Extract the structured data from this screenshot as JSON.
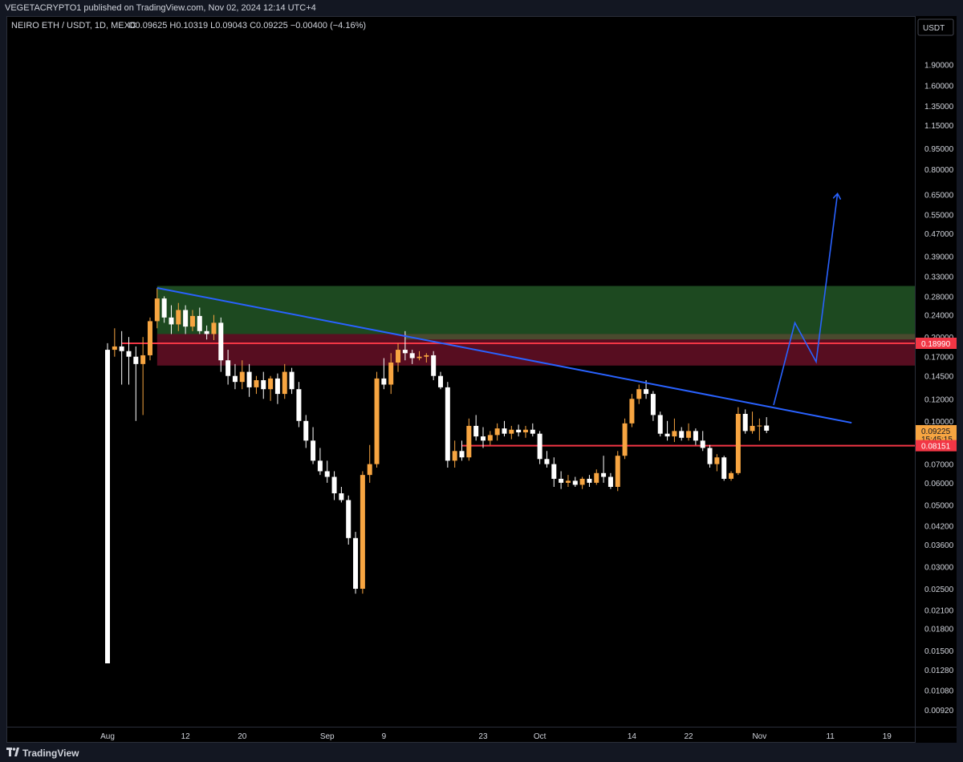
{
  "header": {
    "published": "VEGETACRYPTO1 published on TradingView.com, Nov 02, 2024 12:14 UTC+4"
  },
  "footer": {
    "brand": "TradingView"
  },
  "chart_data": {
    "type": "candlestick",
    "symbol_legend": "NEIRO ETH / USDT, 1D, MEXC",
    "ohlc_legend": "O0.09625  H0.10319  L0.09043  C0.09225  −0.00400 (−4.16%)",
    "currency": "USDT",
    "y_scale": "log",
    "y_ticks": [
      "1.90000",
      "1.60000",
      "1.35000",
      "1.15000",
      "0.95000",
      "0.80000",
      "0.65000",
      "0.55000",
      "0.47000",
      "0.39000",
      "0.33000",
      "0.28000",
      "0.24000",
      "0.20000",
      "0.17000",
      "0.14500",
      "0.12000",
      "0.10000",
      "0.07000",
      "0.06000",
      "0.05000",
      "0.04200",
      "0.03600",
      "0.03000",
      "0.02500",
      "0.02100",
      "0.01800",
      "0.01500",
      "0.01280",
      "0.01080",
      "0.00920"
    ],
    "x_ticks": [
      "Aug",
      "12",
      "20",
      "Sep",
      "9",
      "23",
      "Oct",
      "14",
      "22",
      "Nov",
      "11",
      "19"
    ],
    "price_labels": [
      {
        "value": "0.18990",
        "color": "#f23645"
      },
      {
        "value": "0.09225",
        "sub": "15:45:15",
        "color": "#f7a541"
      },
      {
        "value": "0.08151",
        "color": "#f23645"
      }
    ],
    "levels": [
      {
        "name": "resistance",
        "value": 0.1899,
        "color": "#f23645"
      },
      {
        "name": "support",
        "value": 0.08151,
        "color": "#f23645"
      }
    ],
    "zones": [
      {
        "name": "green-supply-zone",
        "top": 0.305,
        "bottom": 0.196,
        "color": "#1f4d22"
      },
      {
        "name": "red-supply-zone",
        "top": 0.205,
        "bottom": 0.158,
        "color": "#5c0e22"
      }
    ],
    "trendline": {
      "from": [
        "2024-08-08",
        0.3
      ],
      "to": [
        "2024-11-14",
        0.0985
      ],
      "color": "#2962ff"
    },
    "projection": [
      [
        "2024-11-03",
        0.114
      ],
      [
        "2024-11-06",
        0.225
      ],
      [
        "2024-11-09",
        0.163
      ],
      [
        "2024-11-12",
        0.65
      ]
    ],
    "candles": [
      [
        "2024-08-01",
        0.18,
        0.19,
        0.0135,
        0.0135
      ],
      [
        "2024-08-02",
        0.18,
        0.215,
        0.17,
        0.185
      ],
      [
        "2024-08-03",
        0.185,
        0.21,
        0.135,
        0.178
      ],
      [
        "2024-08-04",
        0.178,
        0.2,
        0.135,
        0.17
      ],
      [
        "2024-08-05",
        0.17,
        0.185,
        0.1,
        0.16
      ],
      [
        "2024-08-06",
        0.16,
        0.2,
        0.105,
        0.172
      ],
      [
        "2024-08-07",
        0.172,
        0.235,
        0.165,
        0.228
      ],
      [
        "2024-08-08",
        0.228,
        0.3,
        0.215,
        0.275
      ],
      [
        "2024-08-09",
        0.275,
        0.28,
        0.225,
        0.235
      ],
      [
        "2024-08-10",
        0.235,
        0.26,
        0.205,
        0.222
      ],
      [
        "2024-08-11",
        0.222,
        0.265,
        0.21,
        0.25
      ],
      [
        "2024-08-12",
        0.25,
        0.26,
        0.205,
        0.218
      ],
      [
        "2024-08-13",
        0.218,
        0.25,
        0.21,
        0.238
      ],
      [
        "2024-08-14",
        0.238,
        0.255,
        0.205,
        0.21
      ],
      [
        "2024-08-15",
        0.21,
        0.22,
        0.196,
        0.205
      ],
      [
        "2024-08-16",
        0.205,
        0.24,
        0.195,
        0.225
      ],
      [
        "2024-08-17",
        0.225,
        0.235,
        0.15,
        0.165
      ],
      [
        "2024-08-18",
        0.165,
        0.18,
        0.135,
        0.145
      ],
      [
        "2024-08-19",
        0.145,
        0.16,
        0.13,
        0.138
      ],
      [
        "2024-08-20",
        0.138,
        0.165,
        0.13,
        0.15
      ],
      [
        "2024-08-21",
        0.15,
        0.16,
        0.122,
        0.132
      ],
      [
        "2024-08-22",
        0.132,
        0.145,
        0.125,
        0.14
      ],
      [
        "2024-08-23",
        0.14,
        0.15,
        0.12,
        0.13
      ],
      [
        "2024-08-24",
        0.13,
        0.145,
        0.118,
        0.142
      ],
      [
        "2024-08-25",
        0.142,
        0.148,
        0.115,
        0.125
      ],
      [
        "2024-08-26",
        0.125,
        0.16,
        0.12,
        0.15
      ],
      [
        "2024-08-27",
        0.15,
        0.155,
        0.125,
        0.13
      ],
      [
        "2024-08-28",
        0.13,
        0.138,
        0.095,
        0.1
      ],
      [
        "2024-08-29",
        0.1,
        0.105,
        0.08,
        0.085
      ],
      [
        "2024-08-30",
        0.085,
        0.095,
        0.07,
        0.072
      ],
      [
        "2024-08-31",
        0.072,
        0.08,
        0.064,
        0.066
      ],
      [
        "2024-09-01",
        0.066,
        0.072,
        0.06,
        0.063
      ],
      [
        "2024-09-02",
        0.063,
        0.066,
        0.052,
        0.055
      ],
      [
        "2024-09-03",
        0.055,
        0.058,
        0.051,
        0.052
      ],
      [
        "2024-09-04",
        0.052,
        0.054,
        0.036,
        0.038
      ],
      [
        "2024-09-05",
        0.038,
        0.04,
        0.024,
        0.025
      ],
      [
        "2024-09-06",
        0.025,
        0.066,
        0.024,
        0.064
      ],
      [
        "2024-09-07",
        0.064,
        0.082,
        0.06,
        0.07
      ],
      [
        "2024-09-08",
        0.07,
        0.15,
        0.068,
        0.142
      ],
      [
        "2024-09-09",
        0.142,
        0.168,
        0.13,
        0.135
      ],
      [
        "2024-09-10",
        0.135,
        0.175,
        0.125,
        0.162
      ],
      [
        "2024-09-11",
        0.162,
        0.19,
        0.15,
        0.18
      ],
      [
        "2024-09-12",
        0.18,
        0.21,
        0.165,
        0.175
      ],
      [
        "2024-09-13",
        0.175,
        0.18,
        0.16,
        0.168
      ],
      [
        "2024-09-14",
        0.168,
        0.178,
        0.165,
        0.17
      ],
      [
        "2024-09-15",
        0.17,
        0.175,
        0.162,
        0.172
      ],
      [
        "2024-09-16",
        0.172,
        0.178,
        0.14,
        0.145
      ],
      [
        "2024-09-17",
        0.145,
        0.15,
        0.13,
        0.132
      ],
      [
        "2024-09-18",
        0.132,
        0.138,
        0.068,
        0.072
      ],
      [
        "2024-09-19",
        0.072,
        0.085,
        0.068,
        0.078
      ],
      [
        "2024-09-20",
        0.078,
        0.085,
        0.072,
        0.074
      ],
      [
        "2024-09-21",
        0.074,
        0.102,
        0.072,
        0.096
      ],
      [
        "2024-09-22",
        0.096,
        0.105,
        0.085,
        0.088
      ],
      [
        "2024-09-23",
        0.088,
        0.095,
        0.08,
        0.085
      ],
      [
        "2024-09-24",
        0.085,
        0.092,
        0.082,
        0.089
      ],
      [
        "2024-09-25",
        0.089,
        0.098,
        0.085,
        0.094
      ],
      [
        "2024-09-26",
        0.094,
        0.1,
        0.088,
        0.09
      ],
      [
        "2024-09-27",
        0.09,
        0.096,
        0.086,
        0.093
      ],
      [
        "2024-09-28",
        0.093,
        0.097,
        0.088,
        0.091
      ],
      [
        "2024-09-29",
        0.091,
        0.096,
        0.087,
        0.093
      ],
      [
        "2024-09-30",
        0.093,
        0.098,
        0.088,
        0.09
      ],
      [
        "2024-10-01",
        0.09,
        0.092,
        0.07,
        0.073
      ],
      [
        "2024-10-02",
        0.073,
        0.078,
        0.068,
        0.07
      ],
      [
        "2024-10-03",
        0.07,
        0.074,
        0.058,
        0.062
      ],
      [
        "2024-10-04",
        0.062,
        0.066,
        0.057,
        0.06
      ],
      [
        "2024-10-05",
        0.06,
        0.064,
        0.058,
        0.061
      ],
      [
        "2024-10-06",
        0.061,
        0.063,
        0.058,
        0.059
      ],
      [
        "2024-10-07",
        0.059,
        0.063,
        0.057,
        0.062
      ],
      [
        "2024-10-08",
        0.062,
        0.064,
        0.058,
        0.06
      ],
      [
        "2024-10-09",
        0.06,
        0.067,
        0.059,
        0.065
      ],
      [
        "2024-10-10",
        0.065,
        0.075,
        0.06,
        0.063
      ],
      [
        "2024-10-11",
        0.063,
        0.065,
        0.057,
        0.058
      ],
      [
        "2024-10-12",
        0.058,
        0.078,
        0.056,
        0.075
      ],
      [
        "2024-10-13",
        0.075,
        0.102,
        0.073,
        0.098
      ],
      [
        "2024-10-14",
        0.098,
        0.125,
        0.095,
        0.12
      ],
      [
        "2024-10-15",
        0.12,
        0.135,
        0.115,
        0.13
      ],
      [
        "2024-10-16",
        0.13,
        0.14,
        0.12,
        0.125
      ],
      [
        "2024-10-17",
        0.125,
        0.128,
        0.1,
        0.105
      ],
      [
        "2024-10-18",
        0.105,
        0.108,
        0.088,
        0.09
      ],
      [
        "2024-10-19",
        0.09,
        0.1,
        0.085,
        0.088
      ],
      [
        "2024-10-20",
        0.088,
        0.102,
        0.084,
        0.092
      ],
      [
        "2024-10-21",
        0.092,
        0.095,
        0.085,
        0.087
      ],
      [
        "2024-10-22",
        0.087,
        0.098,
        0.085,
        0.092
      ],
      [
        "2024-10-23",
        0.092,
        0.094,
        0.082,
        0.085
      ],
      [
        "2024-10-24",
        0.085,
        0.092,
        0.078,
        0.08
      ],
      [
        "2024-10-25",
        0.08,
        0.082,
        0.068,
        0.07
      ],
      [
        "2024-10-26",
        0.07,
        0.076,
        0.066,
        0.074
      ],
      [
        "2024-10-27",
        0.074,
        0.075,
        0.061,
        0.062
      ],
      [
        "2024-10-28",
        0.062,
        0.066,
        0.061,
        0.065
      ],
      [
        "2024-10-29",
        0.065,
        0.112,
        0.064,
        0.106
      ],
      [
        "2024-10-30",
        0.106,
        0.11,
        0.09,
        0.092
      ],
      [
        "2024-10-31",
        0.092,
        0.108,
        0.09,
        0.096
      ],
      [
        "2024-11-01",
        0.096,
        0.102,
        0.085,
        0.09625
      ],
      [
        "2024-11-02",
        0.09625,
        0.10319,
        0.09043,
        0.09225
      ]
    ]
  }
}
